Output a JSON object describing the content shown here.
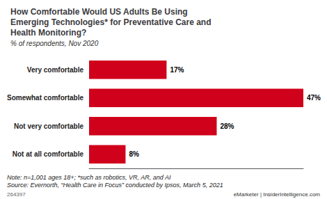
{
  "chart_data": {
    "type": "bar",
    "orientation": "horizontal",
    "title": "How Comfortable Would US Adults Be Using\nEmerging Technologies* for Preventative Care and\nHealth Monitoring?",
    "subtitle": "% of respondents, Nov 2020",
    "categories": [
      "Very comfortable",
      "Somewhat comfortable",
      "Not very comfortable",
      "Not at all comfortable"
    ],
    "values": [
      17,
      47,
      28,
      8
    ],
    "value_labels": [
      "17%",
      "47%",
      "28%",
      "8%"
    ],
    "color": "#d0021b",
    "xlim": [
      0,
      47
    ],
    "data_labels": true,
    "tick_labels": "y",
    "grid": false,
    "annotations": [
      "Note: n=1,001 ages 18+; *such as robotics, VR, AR, and AI",
      "Source: Evernorth, “Health Care in Focus” conducted by Ipsos, March 5, 2021",
      "264397",
      "eMarketer | InsiderIntelligence.com"
    ]
  }
}
